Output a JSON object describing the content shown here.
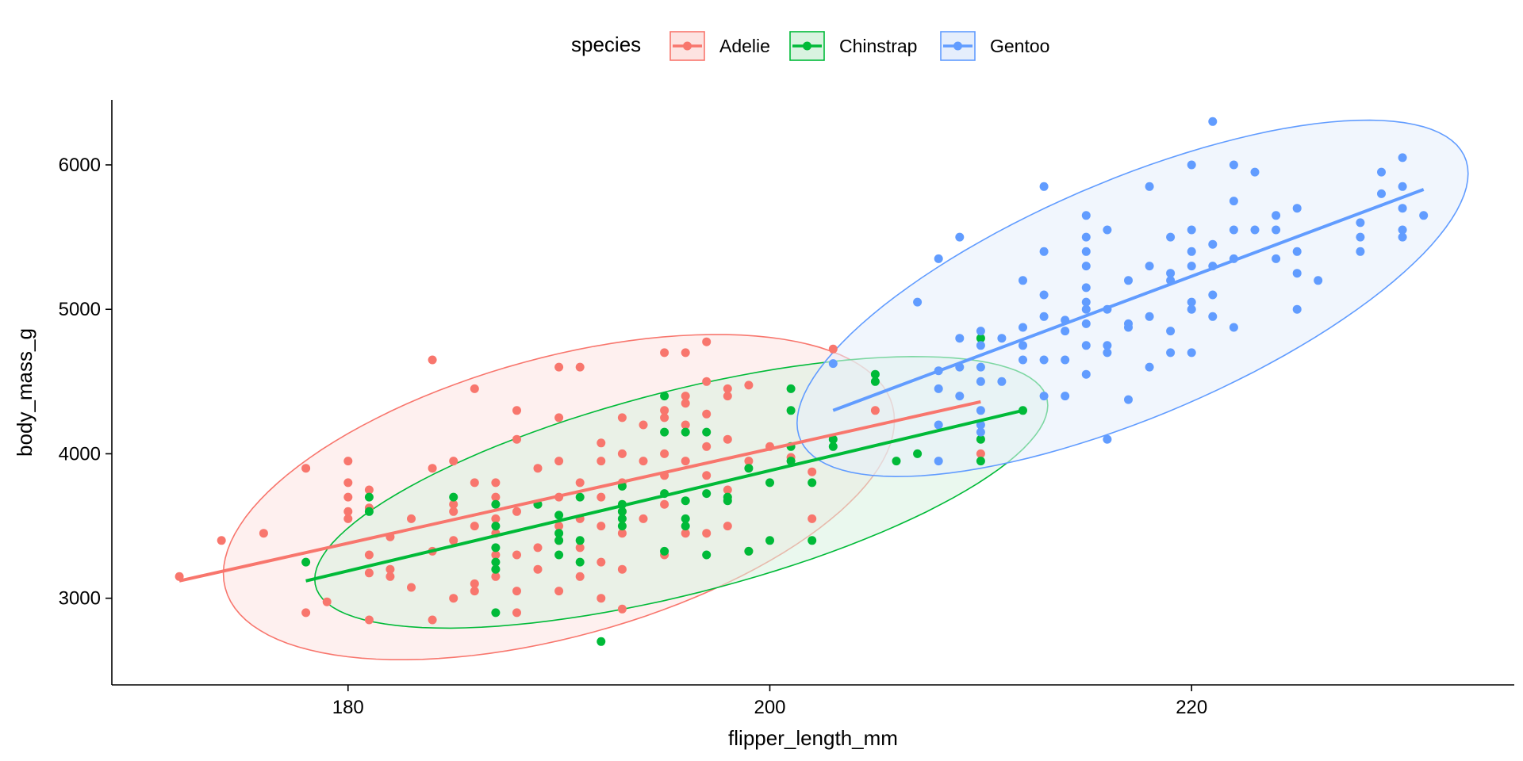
{
  "chart_data": {
    "type": "scatter",
    "title": "",
    "xlabel": "flipper_length_mm",
    "ylabel": "body_mass_g",
    "xlim": [
      168.8,
      235.3
    ],
    "ylim": [
      2400,
      6450
    ],
    "xticks": [
      180,
      200,
      220
    ],
    "yticks": [
      3000,
      4000,
      5000,
      6000
    ],
    "grid": false,
    "legend": {
      "title": "species",
      "position": "top"
    },
    "series": [
      {
        "name": "Adelie",
        "color": "#F8766D",
        "fill": "#FDE3E1",
        "regression": [
          [
            172,
            3120
          ],
          [
            210,
            4360
          ]
        ],
        "ellipse": {
          "center": [
            190.0,
            3700
          ],
          "sd": [
            6.5,
            460
          ],
          "r": 0.47
        },
        "points": [
          [
            172,
            3150
          ],
          [
            174,
            3400
          ],
          [
            176,
            3450
          ],
          [
            178,
            3900
          ],
          [
            178,
            2900
          ],
          [
            179,
            2975
          ],
          [
            180,
            3950
          ],
          [
            180,
            3800
          ],
          [
            180,
            3700
          ],
          [
            180,
            3600
          ],
          [
            180,
            3550
          ],
          [
            181,
            3750
          ],
          [
            181,
            3625
          ],
          [
            181,
            3300
          ],
          [
            181,
            3175
          ],
          [
            181,
            2850
          ],
          [
            182,
            3425
          ],
          [
            182,
            3200
          ],
          [
            182,
            3150
          ],
          [
            183,
            3550
          ],
          [
            183,
            3075
          ],
          [
            184,
            4650
          ],
          [
            184,
            3900
          ],
          [
            184,
            3325
          ],
          [
            184,
            2850
          ],
          [
            185,
            3950
          ],
          [
            185,
            3650
          ],
          [
            185,
            3600
          ],
          [
            185,
            3400
          ],
          [
            185,
            3000
          ],
          [
            186,
            4450
          ],
          [
            186,
            3800
          ],
          [
            186,
            3500
          ],
          [
            186,
            3100
          ],
          [
            186,
            3050
          ],
          [
            187,
            3800
          ],
          [
            187,
            3700
          ],
          [
            187,
            3550
          ],
          [
            187,
            3450
          ],
          [
            187,
            3300
          ],
          [
            187,
            3150
          ],
          [
            188,
            4300
          ],
          [
            188,
            4100
          ],
          [
            188,
            3600
          ],
          [
            188,
            3300
          ],
          [
            188,
            3050
          ],
          [
            188,
            2900
          ],
          [
            189,
            3900
          ],
          [
            189,
            3650
          ],
          [
            189,
            3350
          ],
          [
            189,
            3200
          ],
          [
            190,
            4600
          ],
          [
            190,
            4250
          ],
          [
            190,
            3950
          ],
          [
            190,
            3700
          ],
          [
            190,
            3500
          ],
          [
            190,
            3400
          ],
          [
            190,
            3050
          ],
          [
            191,
            4600
          ],
          [
            191,
            3800
          ],
          [
            191,
            3550
          ],
          [
            191,
            3350
          ],
          [
            191,
            3150
          ],
          [
            192,
            4075
          ],
          [
            192,
            3950
          ],
          [
            192,
            3700
          ],
          [
            192,
            3500
          ],
          [
            192,
            3250
          ],
          [
            192,
            3000
          ],
          [
            193,
            4250
          ],
          [
            193,
            4000
          ],
          [
            193,
            3800
          ],
          [
            193,
            3600
          ],
          [
            193,
            3450
          ],
          [
            193,
            3200
          ],
          [
            193,
            2925
          ],
          [
            194,
            4200
          ],
          [
            194,
            3950
          ],
          [
            194,
            3550
          ],
          [
            195,
            4700
          ],
          [
            195,
            4300
          ],
          [
            195,
            4250
          ],
          [
            195,
            4000
          ],
          [
            195,
            3850
          ],
          [
            195,
            3650
          ],
          [
            195,
            3300
          ],
          [
            196,
            4700
          ],
          [
            196,
            4400
          ],
          [
            196,
            4350
          ],
          [
            196,
            4200
          ],
          [
            196,
            3950
          ],
          [
            196,
            3450
          ],
          [
            197,
            4775
          ],
          [
            197,
            4500
          ],
          [
            197,
            4275
          ],
          [
            197,
            4050
          ],
          [
            197,
            3850
          ],
          [
            197,
            3450
          ],
          [
            198,
            4400
          ],
          [
            198,
            4450
          ],
          [
            198,
            4100
          ],
          [
            198,
            3750
          ],
          [
            198,
            3500
          ],
          [
            199,
            4475
          ],
          [
            199,
            3950
          ],
          [
            199,
            3325
          ],
          [
            200,
            4050
          ],
          [
            201,
            3975
          ],
          [
            202,
            3875
          ],
          [
            202,
            3550
          ],
          [
            203,
            4725
          ],
          [
            205,
            4300
          ],
          [
            210,
            4000
          ]
        ]
      },
      {
        "name": "Chinstrap",
        "color": "#00BA38",
        "fill": "#D9F3E0",
        "regression": [
          [
            178,
            3120
          ],
          [
            212,
            4300
          ]
        ],
        "ellipse": {
          "center": [
            195.8,
            3733
          ],
          "sd": [
            7.1,
            384
          ],
          "r": 0.64
        },
        "points": [
          [
            178,
            3250
          ],
          [
            181,
            3700
          ],
          [
            181,
            3600
          ],
          [
            185,
            3700
          ],
          [
            187,
            3650
          ],
          [
            187,
            3500
          ],
          [
            187,
            3350
          ],
          [
            187,
            3250
          ],
          [
            187,
            3200
          ],
          [
            187,
            2900
          ],
          [
            189,
            3650
          ],
          [
            190,
            3450
          ],
          [
            190,
            3400
          ],
          [
            190,
            3300
          ],
          [
            190,
            3575
          ],
          [
            191,
            3700
          ],
          [
            191,
            3400
          ],
          [
            191,
            3250
          ],
          [
            192,
            2700
          ],
          [
            193,
            3775
          ],
          [
            193,
            3650
          ],
          [
            193,
            3600
          ],
          [
            193,
            3550
          ],
          [
            193,
            3500
          ],
          [
            195,
            4400
          ],
          [
            195,
            4150
          ],
          [
            195,
            3725
          ],
          [
            195,
            3325
          ],
          [
            196,
            4150
          ],
          [
            196,
            3675
          ],
          [
            196,
            3550
          ],
          [
            196,
            3500
          ],
          [
            197,
            4150
          ],
          [
            197,
            3725
          ],
          [
            197,
            3300
          ],
          [
            198,
            3700
          ],
          [
            198,
            3675
          ],
          [
            199,
            3900
          ],
          [
            199,
            3325
          ],
          [
            200,
            3800
          ],
          [
            200,
            3400
          ],
          [
            201,
            4450
          ],
          [
            201,
            4300
          ],
          [
            201,
            4050
          ],
          [
            201,
            3950
          ],
          [
            202,
            3800
          ],
          [
            202,
            3400
          ],
          [
            203,
            4100
          ],
          [
            203,
            4050
          ],
          [
            205,
            4550
          ],
          [
            205,
            4500
          ],
          [
            206,
            3950
          ],
          [
            207,
            4000
          ],
          [
            210,
            4800
          ],
          [
            210,
            4100
          ],
          [
            210,
            3950
          ],
          [
            212,
            4300
          ]
        ]
      },
      {
        "name": "Gentoo",
        "color": "#619CFF",
        "fill": "#E5EEFC",
        "regression": [
          [
            203,
            4300
          ],
          [
            231,
            5830
          ]
        ],
        "ellipse": {
          "center": [
            217.2,
            5076
          ],
          "sd": [
            6.5,
            504
          ],
          "r": 0.7
        },
        "points": [
          [
            203,
            4625
          ],
          [
            207,
            5050
          ],
          [
            208,
            5350
          ],
          [
            208,
            4575
          ],
          [
            208,
            4450
          ],
          [
            208,
            4200
          ],
          [
            208,
            3950
          ],
          [
            209,
            5500
          ],
          [
            209,
            4800
          ],
          [
            209,
            4600
          ],
          [
            209,
            4400
          ],
          [
            210,
            4850
          ],
          [
            210,
            4750
          ],
          [
            210,
            4600
          ],
          [
            210,
            4500
          ],
          [
            210,
            4300
          ],
          [
            210,
            4200
          ],
          [
            210,
            4150
          ],
          [
            211,
            4800
          ],
          [
            211,
            4500
          ],
          [
            212,
            5200
          ],
          [
            212,
            4875
          ],
          [
            212,
            4750
          ],
          [
            212,
            4650
          ],
          [
            213,
            5850
          ],
          [
            213,
            5400
          ],
          [
            213,
            5100
          ],
          [
            213,
            4950
          ],
          [
            213,
            4650
          ],
          [
            213,
            4400
          ],
          [
            214,
            4925
          ],
          [
            214,
            4850
          ],
          [
            214,
            4650
          ],
          [
            214,
            4400
          ],
          [
            215,
            5650
          ],
          [
            215,
            5500
          ],
          [
            215,
            5400
          ],
          [
            215,
            5300
          ],
          [
            215,
            5150
          ],
          [
            215,
            5050
          ],
          [
            215,
            5000
          ],
          [
            215,
            4900
          ],
          [
            215,
            4750
          ],
          [
            215,
            4550
          ],
          [
            216,
            5550
          ],
          [
            216,
            5000
          ],
          [
            216,
            4750
          ],
          [
            216,
            4700
          ],
          [
            216,
            4100
          ],
          [
            217,
            5200
          ],
          [
            217,
            4900
          ],
          [
            217,
            4875
          ],
          [
            217,
            4375
          ],
          [
            218,
            5850
          ],
          [
            218,
            5300
          ],
          [
            218,
            4950
          ],
          [
            218,
            4600
          ],
          [
            219,
            5500
          ],
          [
            219,
            5250
          ],
          [
            219,
            5200
          ],
          [
            219,
            4850
          ],
          [
            219,
            4700
          ],
          [
            220,
            6000
          ],
          [
            220,
            5550
          ],
          [
            220,
            5400
          ],
          [
            220,
            5300
          ],
          [
            220,
            5050
          ],
          [
            220,
            5000
          ],
          [
            220,
            4700
          ],
          [
            221,
            6300
          ],
          [
            221,
            5450
          ],
          [
            221,
            5300
          ],
          [
            221,
            5100
          ],
          [
            221,
            4950
          ],
          [
            222,
            6000
          ],
          [
            222,
            5750
          ],
          [
            222,
            5550
          ],
          [
            222,
            5350
          ],
          [
            222,
            4875
          ],
          [
            223,
            5950
          ],
          [
            223,
            5550
          ],
          [
            224,
            5650
          ],
          [
            224,
            5550
          ],
          [
            224,
            5350
          ],
          [
            225,
            5700
          ],
          [
            225,
            5400
          ],
          [
            225,
            5250
          ],
          [
            225,
            5000
          ],
          [
            226,
            5200
          ],
          [
            228,
            5600
          ],
          [
            228,
            5500
          ],
          [
            228,
            5400
          ],
          [
            229,
            5950
          ],
          [
            229,
            5800
          ],
          [
            230,
            6050
          ],
          [
            230,
            5850
          ],
          [
            230,
            5700
          ],
          [
            230,
            5550
          ],
          [
            230,
            5500
          ],
          [
            231,
            5650
          ]
        ]
      }
    ]
  }
}
